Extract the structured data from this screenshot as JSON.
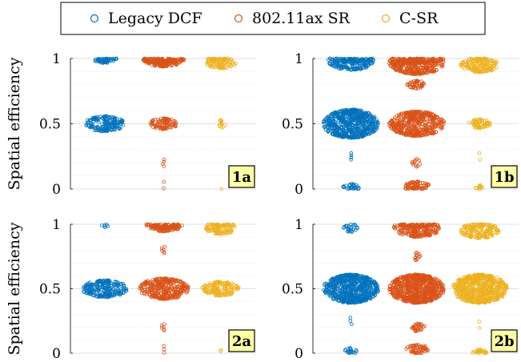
{
  "legend": {
    "placement": "top-center",
    "items": [
      {
        "label": "Legacy DCF",
        "color": "#0072BD"
      },
      {
        "label": "802.11ax SR",
        "color": "#D95319"
      },
      {
        "label": "C-SR",
        "color": "#EDB120"
      }
    ]
  },
  "chart_data": [
    {
      "type": "scatter",
      "subtype": "swarm",
      "panel_label": "1a",
      "ylabel": "Spatial efficiency",
      "ylim": [
        0,
        1
      ],
      "yticks": [
        "0",
        "0.5",
        "1"
      ],
      "grid": true,
      "minor_grid": true,
      "series": [
        {
          "name": "Legacy DCF",
          "clusters": [
            {
              "y": 1.0,
              "count": 60
            },
            {
              "y": 0.5,
              "count": 170
            }
          ]
        },
        {
          "name": "802.11ax SR",
          "clusters": [
            {
              "y": 1.0,
              "count": 200
            },
            {
              "y": 0.5,
              "count": 90
            },
            {
              "y": 0.2,
              "count": 4
            },
            {
              "y": 0.03,
              "count": 2
            }
          ]
        },
        {
          "name": "C-SR",
          "clusters": [
            {
              "y": 0.97,
              "count": 110
            },
            {
              "y": 0.5,
              "count": 12
            },
            {
              "y": 0.0,
              "count": 1
            }
          ]
        }
      ]
    },
    {
      "type": "scatter",
      "subtype": "swarm",
      "panel_label": "1b",
      "ylabel": "",
      "ylim": [
        0,
        1
      ],
      "yticks": [
        "0",
        "0.5",
        "1"
      ],
      "grid": true,
      "minor_grid": true,
      "series": [
        {
          "name": "Legacy DCF",
          "clusters": [
            {
              "y": 0.98,
              "count": 230
            },
            {
              "y": 0.5,
              "count": 600
            },
            {
              "y": 0.25,
              "count": 4
            },
            {
              "y": 0.01,
              "count": 30
            }
          ]
        },
        {
          "name": "802.11ax SR",
          "clusters": [
            {
              "y": 0.97,
              "count": 420
            },
            {
              "y": 0.8,
              "count": 40
            },
            {
              "y": 0.5,
              "count": 450
            },
            {
              "y": 0.2,
              "count": 12
            },
            {
              "y": 0.02,
              "count": 70
            }
          ]
        },
        {
          "name": "C-SR",
          "clusters": [
            {
              "y": 0.95,
              "count": 160
            },
            {
              "y": 0.5,
              "count": 60
            },
            {
              "y": 0.25,
              "count": 2
            },
            {
              "y": 0.0,
              "count": 12
            }
          ]
        }
      ]
    },
    {
      "type": "scatter",
      "subtype": "swarm",
      "panel_label": "2a",
      "ylabel": "Spatial efficiency",
      "ylim": [
        0,
        1
      ],
      "yticks": [
        "0",
        "0.5",
        "1"
      ],
      "grid": true,
      "minor_grid": true,
      "series": [
        {
          "name": "Legacy DCF",
          "clusters": [
            {
              "y": 1.0,
              "count": 6
            },
            {
              "y": 0.5,
              "count": 220
            }
          ]
        },
        {
          "name": "802.11ax SR",
          "clusters": [
            {
              "y": 1.0,
              "count": 160
            },
            {
              "y": 0.8,
              "count": 6
            },
            {
              "y": 0.5,
              "count": 330
            },
            {
              "y": 0.2,
              "count": 6
            },
            {
              "y": 0.03,
              "count": 3
            }
          ]
        },
        {
          "name": "C-SR",
          "clusters": [
            {
              "y": 0.97,
              "count": 110
            },
            {
              "y": 0.5,
              "count": 150
            },
            {
              "y": 0.0,
              "count": 2
            }
          ]
        }
      ]
    },
    {
      "type": "scatter",
      "subtype": "swarm",
      "panel_label": "2b",
      "ylabel": "",
      "ylim": [
        0,
        1
      ],
      "yticks": [
        "0",
        "0.5",
        "1"
      ],
      "grid": true,
      "minor_grid": true,
      "series": [
        {
          "name": "Legacy DCF",
          "clusters": [
            {
              "y": 0.97,
              "count": 25
            },
            {
              "y": 0.5,
              "count": 620
            },
            {
              "y": 0.25,
              "count": 3
            },
            {
              "y": 0.01,
              "count": 20
            }
          ]
        },
        {
          "name": "802.11ax SR",
          "clusters": [
            {
              "y": 0.97,
              "count": 240
            },
            {
              "y": 0.75,
              "count": 12
            },
            {
              "y": 0.5,
              "count": 720
            },
            {
              "y": 0.2,
              "count": 30
            },
            {
              "y": 0.03,
              "count": 60
            }
          ]
        },
        {
          "name": "C-SR",
          "clusters": [
            {
              "y": 0.95,
              "count": 170
            },
            {
              "y": 0.5,
              "count": 620
            },
            {
              "y": 0.22,
              "count": 2
            },
            {
              "y": 0.0,
              "count": 25
            }
          ]
        }
      ]
    }
  ]
}
